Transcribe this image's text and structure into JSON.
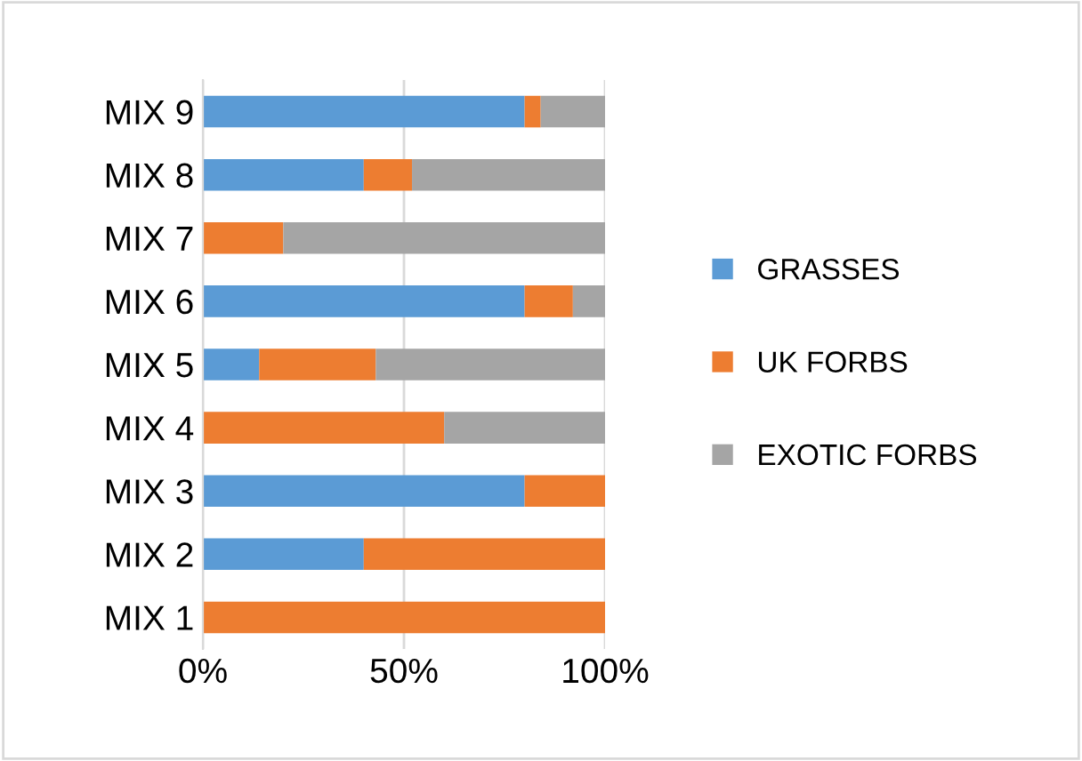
{
  "chart_data": {
    "type": "bar",
    "orientation": "horizontal",
    "stacked": true,
    "categories": [
      "MIX 9",
      "MIX 8",
      "MIX 7",
      "MIX 6",
      "MIX 5",
      "MIX 4",
      "MIX 3",
      "MIX 2",
      "MIX 1"
    ],
    "series": [
      {
        "name": "GRASSES",
        "color": "#5b9bd5",
        "values": [
          80,
          40,
          0,
          80,
          14,
          0,
          80,
          40,
          0
        ]
      },
      {
        "name": "UK FORBS",
        "color": "#ed7d31",
        "values": [
          4,
          12,
          20,
          12,
          29,
          60,
          20,
          60,
          100
        ]
      },
      {
        "name": "EXOTIC FORBS",
        "color": "#a5a5a5",
        "values": [
          16,
          48,
          80,
          8,
          57,
          40,
          0,
          0,
          0
        ]
      }
    ],
    "xlim": [
      0,
      100
    ],
    "xticks": [
      {
        "value": 0,
        "label": "0%"
      },
      {
        "value": 50,
        "label": "50%"
      },
      {
        "value": 100,
        "label": "100%"
      }
    ],
    "grid": "x",
    "legend": "right"
  }
}
